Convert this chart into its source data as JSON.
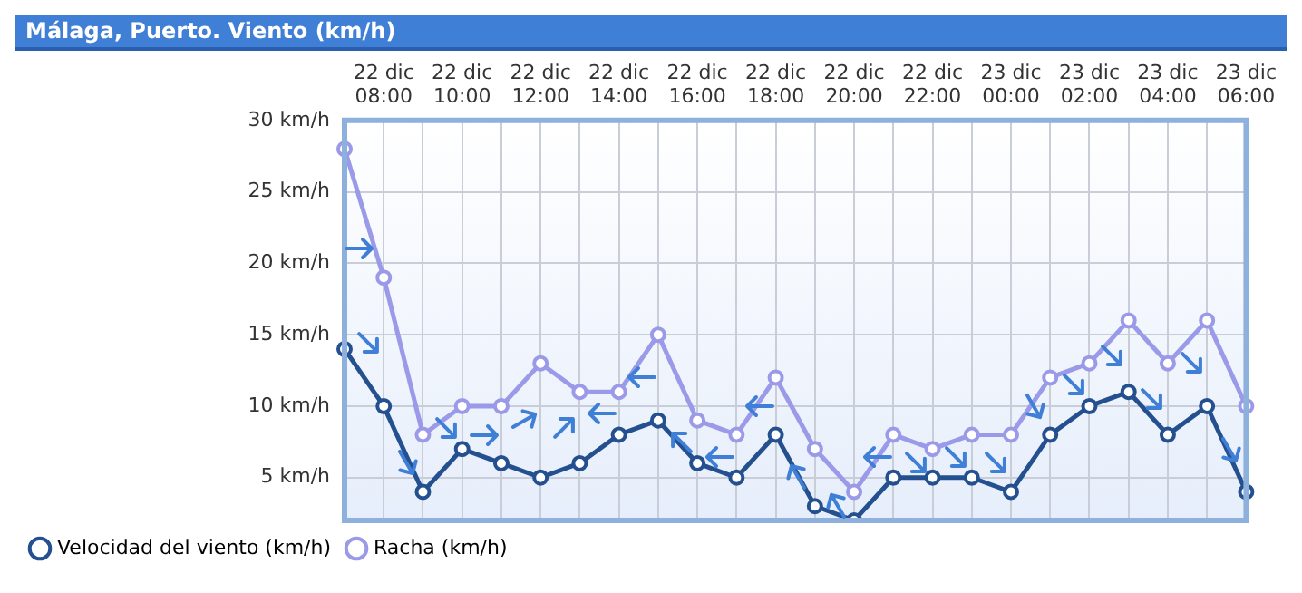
{
  "chart_data": {
    "type": "line",
    "title": "Málaga, Puerto. Viento (km/h)",
    "categories": [
      null,
      "22 dic\n08:00",
      null,
      "22 dic\n10:00",
      null,
      "22 dic\n12:00",
      null,
      "22 dic\n14:00",
      null,
      "22 dic\n16:00",
      null,
      "22 dic\n18:00",
      null,
      "22 dic\n20:00",
      null,
      "22 dic\n22:00",
      null,
      "23 dic\n00:00",
      null,
      "23 dic\n02:00",
      null,
      "23 dic\n04:00",
      null,
      "23 dic\n06:00"
    ],
    "series": [
      {
        "name": "Velocidad del viento (km/h)",
        "color": "#24508f",
        "values": [
          14,
          10,
          4,
          7,
          6,
          5,
          6,
          8,
          9,
          6,
          5,
          8,
          3,
          2,
          5,
          5,
          5,
          4,
          8,
          10,
          11,
          8,
          10,
          4
        ]
      },
      {
        "name": "Racha (km/h)",
        "color": "#9a9ae8",
        "values": [
          28,
          19,
          8,
          10,
          10,
          13,
          11,
          11,
          15,
          9,
          8,
          12,
          7,
          4,
          8,
          7,
          8,
          8,
          12,
          13,
          16,
          13,
          16,
          10
        ]
      }
    ],
    "ylim": [
      2,
      30
    ],
    "yticks": [
      {
        "value": 5,
        "label": "5 km/h"
      },
      {
        "value": 10,
        "label": "10 km/h"
      },
      {
        "value": 15,
        "label": "15 km/h"
      },
      {
        "value": 20,
        "label": "20 km/h"
      },
      {
        "value": 25,
        "label": "25 km/h"
      },
      {
        "value": 30,
        "label": "30 km/h"
      }
    ],
    "grid": true,
    "legend": "bottom",
    "marker": "circle",
    "line_style": "solid"
  }
}
